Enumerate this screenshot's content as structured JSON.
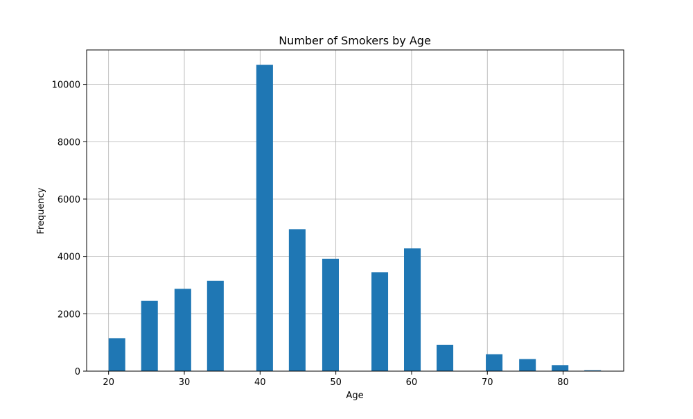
{
  "chart_data": {
    "type": "bar",
    "title": "Number of Smokers by Age",
    "xlabel": "Age",
    "ylabel": "Frequency",
    "xlim": [
      17.1,
      88.0
    ],
    "ylim": [
      0,
      11200
    ],
    "xticks": [
      20,
      30,
      40,
      50,
      60,
      70,
      80
    ],
    "yticks": [
      0,
      2000,
      4000,
      6000,
      8000,
      10000
    ],
    "grid": true,
    "bar_color": "#1f77b4",
    "bars": [
      {
        "start": 20.0,
        "end": 22.2,
        "value": 1150
      },
      {
        "start": 24.3,
        "end": 26.5,
        "value": 2450
      },
      {
        "start": 28.7,
        "end": 30.9,
        "value": 2870
      },
      {
        "start": 33.0,
        "end": 35.2,
        "value": 3150
      },
      {
        "start": 39.5,
        "end": 41.7,
        "value": 10680
      },
      {
        "start": 43.8,
        "end": 46.0,
        "value": 4950
      },
      {
        "start": 48.2,
        "end": 50.4,
        "value": 3920
      },
      {
        "start": 54.7,
        "end": 56.9,
        "value": 3450
      },
      {
        "start": 59.0,
        "end": 61.2,
        "value": 4280
      },
      {
        "start": 63.3,
        "end": 65.5,
        "value": 920
      },
      {
        "start": 69.8,
        "end": 72.0,
        "value": 590
      },
      {
        "start": 74.2,
        "end": 76.4,
        "value": 420
      },
      {
        "start": 78.5,
        "end": 80.7,
        "value": 210
      },
      {
        "start": 82.8,
        "end": 85.0,
        "value": 30
      }
    ]
  }
}
